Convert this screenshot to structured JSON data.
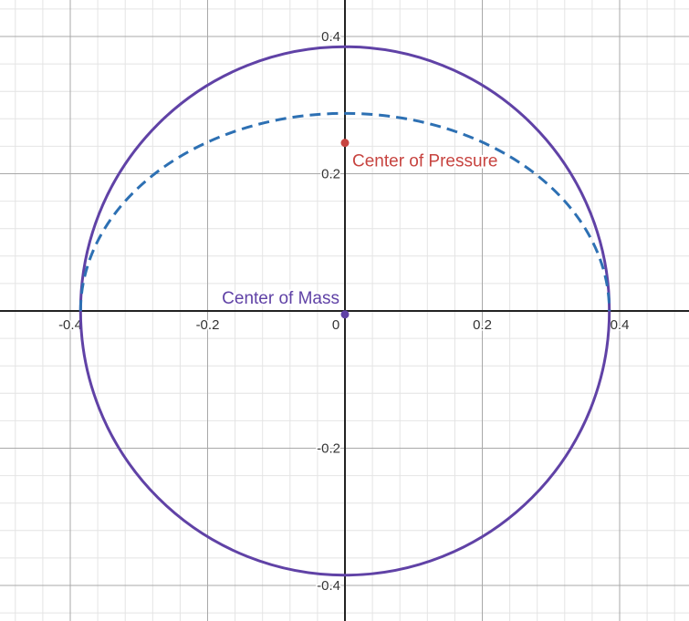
{
  "chart_data": {
    "type": "scatter",
    "xlim": [
      -0.5,
      0.5
    ],
    "ylim": [
      -0.45,
      0.45
    ],
    "grid": true,
    "x_ticks": [
      {
        "value": -0.4,
        "label": "-0.4"
      },
      {
        "value": -0.2,
        "label": "-0.2"
      },
      {
        "value": 0,
        "label": "0"
      },
      {
        "value": 0.2,
        "label": "0.2"
      },
      {
        "value": 0.4,
        "label": "0.4"
      }
    ],
    "y_ticks": [
      {
        "value": 0.4,
        "label": "0.4"
      },
      {
        "value": 0.2,
        "label": "0.2"
      },
      {
        "value": -0.2,
        "label": "-0.2"
      },
      {
        "value": -0.4,
        "label": "-0.4"
      }
    ],
    "curves": [
      {
        "shape": "circle",
        "center": [
          0,
          0
        ],
        "radius": 0.385,
        "color": "#6042a6",
        "style": "solid"
      },
      {
        "shape": "upper-half-ellipse",
        "center": [
          0,
          0
        ],
        "rx": 0.385,
        "ry": 0.288,
        "color": "#2d70b3",
        "style": "dashed"
      }
    ],
    "points": [
      {
        "label": "Center of Pressure",
        "x": 0,
        "y": 0.245,
        "color": "#c74440"
      },
      {
        "label": "Center of Mass",
        "x": 0,
        "y": -0.005,
        "color": "#6042a6"
      }
    ]
  }
}
